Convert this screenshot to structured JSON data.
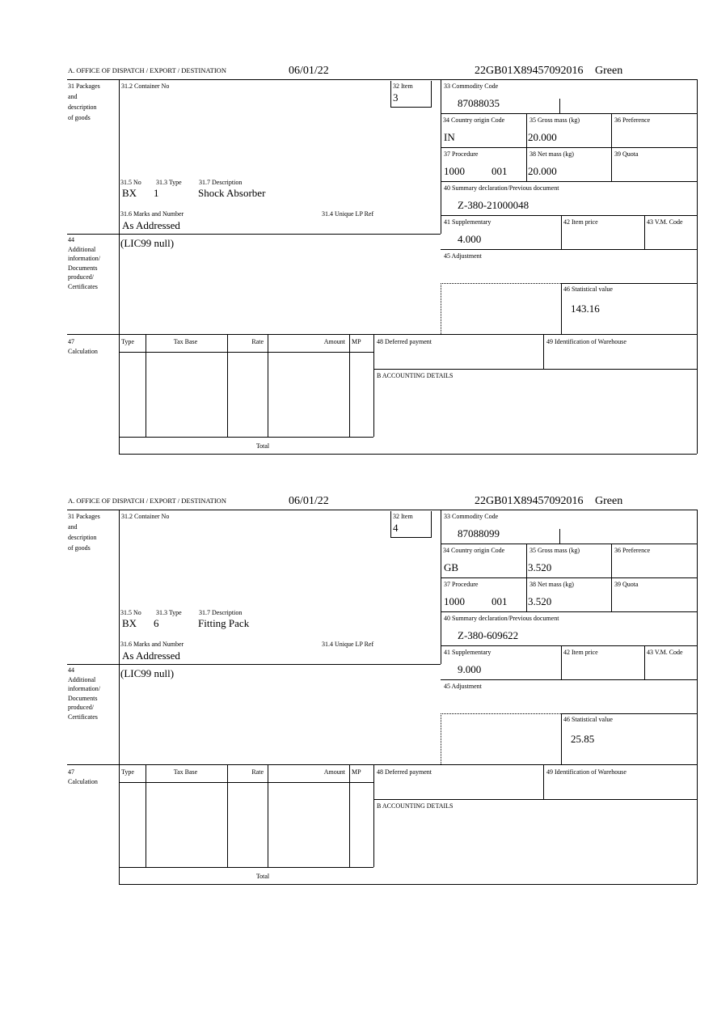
{
  "labels": {
    "office": "A. OFFICE OF DISPATCH / EXPORT / DESTINATION",
    "packages": [
      "31 Packages",
      "and",
      "description",
      "of goods"
    ],
    "container_no": "31.2 Container No",
    "item": "32 Item",
    "no": "31.5 No",
    "type": "31.3 Type",
    "description": "31.7 Description",
    "marks": "31.6 Marks and Number",
    "unique_lp": "31.4 Unique LP Ref",
    "additional": [
      "44",
      "Additional",
      "information/",
      "Documents",
      "produced/",
      "Certificates"
    ],
    "commodity": "33 Commodity Code",
    "country": "34 Country origin Code",
    "gross": "35 Gross mass (kg)",
    "preference": "36 Preference",
    "procedure": "37 Procedure",
    "net": "38 Net mass (kg)",
    "quota": "39 Quota",
    "summary": "40 Summary declaration/Previous document",
    "supplementary": "41 Supplementary",
    "item_price": "42 Item price",
    "vm_code": "43 V.M. Code",
    "adjustment": "45 Adjustment",
    "statistical": "46 Statistical value",
    "calculation": [
      "47",
      "Calculation"
    ],
    "calc_cols": [
      "Type",
      "Tax Base",
      "Rate",
      "Amount",
      "MP"
    ],
    "total": "Total",
    "deferred": "48 Deferred payment",
    "warehouse": "49 Identification of Warehouse",
    "accounting": "B ACCOUNTING DETAILS"
  },
  "items": [
    {
      "date": "06/01/22",
      "reference": "22GB01X89457092016",
      "route": "Green",
      "item_no": "3",
      "package_kind": "BX",
      "package_count": "1",
      "description": "Shock Absorber",
      "marks": "As Addressed",
      "additional_info": "(LIC99 null)",
      "commodity_code": "87088035",
      "country_origin": "IN",
      "gross_mass": "20.000",
      "procedure": "1000",
      "procedure_add": "001",
      "net_mass": "20.000",
      "summary_doc": "Z-380-21000048",
      "supplementary": "4.000",
      "statistical_value": "143.16"
    },
    {
      "date": "06/01/22",
      "reference": "22GB01X89457092016",
      "route": "Green",
      "item_no": "4",
      "package_kind": "BX",
      "package_count": "6",
      "description": "Fitting Pack",
      "marks": "As Addressed",
      "additional_info": "(LIC99 null)",
      "commodity_code": "87088099",
      "country_origin": "GB",
      "gross_mass": "3.520",
      "procedure": "1000",
      "procedure_add": "001",
      "net_mass": "3.520",
      "summary_doc": "Z-380-609622",
      "supplementary": "9.000",
      "statistical_value": "25.85"
    }
  ]
}
